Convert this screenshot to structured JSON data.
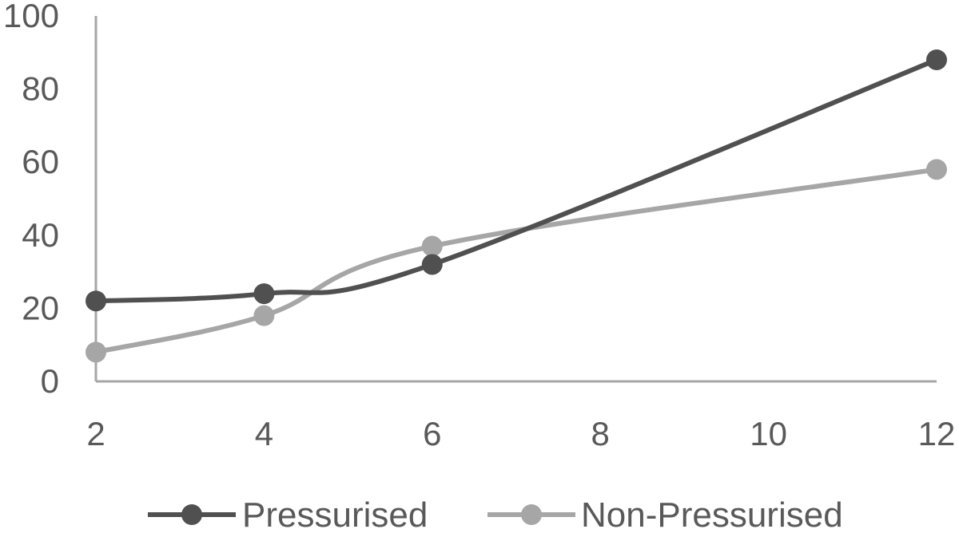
{
  "chart_data": {
    "type": "line",
    "x": [
      2,
      4,
      6,
      12
    ],
    "series": [
      {
        "name": "Pressurised",
        "values": [
          22,
          24,
          32,
          88
        ],
        "color": "#505050"
      },
      {
        "name": "Non-Pressurised",
        "values": [
          8,
          18,
          37,
          58
        ],
        "color": "#a6a6a6"
      }
    ],
    "xticks": [
      2,
      4,
      6,
      8,
      10,
      12
    ],
    "yticks": [
      0,
      20,
      40,
      60,
      80,
      100
    ],
    "xlim": [
      2,
      12
    ],
    "ylim": [
      0,
      100
    ],
    "xlabel": "",
    "ylabel": "",
    "title": "",
    "grid": false,
    "smooth": true,
    "legend": "bottom-center"
  }
}
